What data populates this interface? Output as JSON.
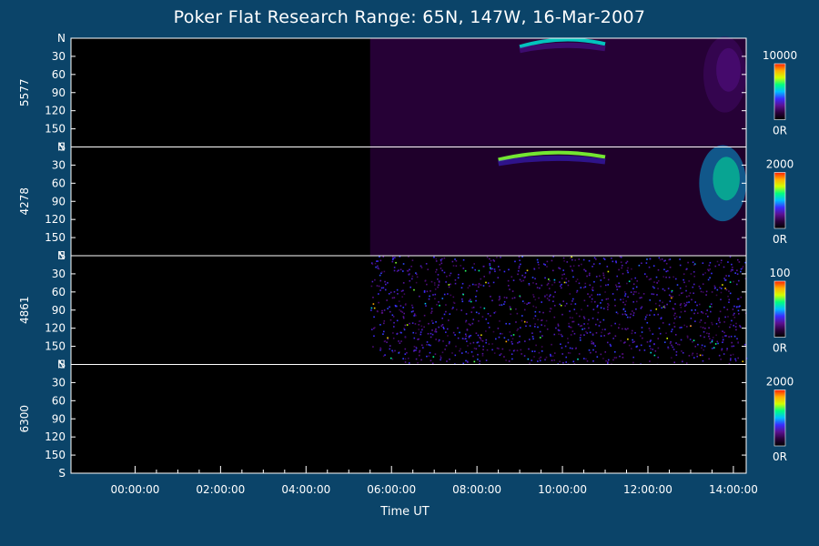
{
  "chart_data": {
    "type": "heatmap",
    "title": "Poker Flat Research Range: 65N, 147W, 16-Mar-2007",
    "xlabel": "Time UT",
    "x_ticks": [
      "00:00:00",
      "02:00:00",
      "04:00:00",
      "06:00:00",
      "08:00:00",
      "10:00:00",
      "12:00:00",
      "14:00:00"
    ],
    "x_tick_hours": [
      0,
      2,
      4,
      6,
      8,
      10,
      12,
      14
    ],
    "xlim_hours": [
      -1.5,
      14.3
    ],
    "data_start_hour": 5.5,
    "y_ticks": [
      "N",
      "30",
      "60",
      "90",
      "120",
      "150",
      "S"
    ],
    "y_tick_values": [
      0,
      30,
      60,
      90,
      120,
      150,
      180
    ],
    "ylim": [
      0,
      180
    ],
    "colormap": [
      "#000000",
      "#2a003a",
      "#5a1090",
      "#3a2cff",
      "#00c0ff",
      "#00ff80",
      "#d0ff00",
      "#ffb000",
      "#ff2000"
    ],
    "panels": [
      {
        "name": "5577",
        "colorbar_max": "10000",
        "colorbar_min": "0R",
        "features": [
          {
            "kind": "background",
            "intensity": 0.06
          },
          {
            "kind": "arc",
            "start_hour": 9.0,
            "end_hour": 11.0,
            "angle": 5,
            "intensity": 0.55
          },
          {
            "kind": "glow",
            "start_hour": 13.3,
            "end_hour": 14.3,
            "angle": 60,
            "intensity": 0.2
          }
        ]
      },
      {
        "name": "4278",
        "colorbar_max": "2000",
        "colorbar_min": "0R",
        "features": [
          {
            "kind": "background",
            "intensity": 0.05
          },
          {
            "kind": "arc",
            "start_hour": 8.5,
            "end_hour": 11.0,
            "angle": 12,
            "intensity": 0.7
          },
          {
            "kind": "patch",
            "start_hour": 13.2,
            "end_hour": 14.3,
            "angle": 60,
            "intensity": 0.5
          }
        ]
      },
      {
        "name": "4861",
        "colorbar_max": "100",
        "colorbar_min": "0R",
        "features": [
          {
            "kind": "noise",
            "intensity": 0.25
          }
        ]
      },
      {
        "name": "6300",
        "colorbar_max": "2000",
        "colorbar_min": "0R",
        "features": [
          {
            "kind": "background",
            "intensity": 0.0
          }
        ]
      }
    ]
  }
}
